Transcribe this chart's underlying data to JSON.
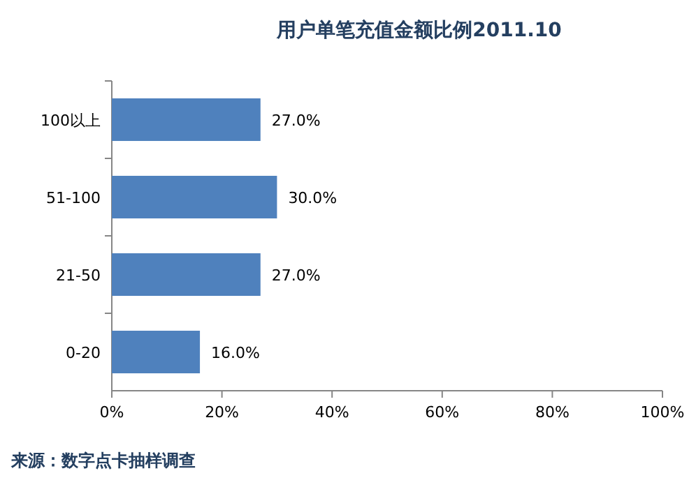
{
  "chart_data": {
    "type": "bar",
    "orientation": "horizontal",
    "title": "用户单笔充值金额比例2011.10",
    "categories": [
      "100以上",
      "51-100",
      "21-50",
      "0-20"
    ],
    "values": [
      27,
      30,
      27,
      16
    ],
    "color": "#4f81bd",
    "value_labels": [
      "27.0%",
      "30.0%",
      "27.0%",
      "16.0%"
    ],
    "xlim": [
      0,
      100
    ],
    "xticks": [
      {
        "value": 0,
        "label": "0%"
      },
      {
        "value": 20,
        "label": "20%"
      },
      {
        "value": 40,
        "label": "40%"
      },
      {
        "value": 60,
        "label": "60%"
      },
      {
        "value": 80,
        "label": "80%"
      },
      {
        "value": 100,
        "label": "100%"
      }
    ],
    "grid": false,
    "annotations": [
      "来源：数字点卡抽样调查"
    ]
  }
}
